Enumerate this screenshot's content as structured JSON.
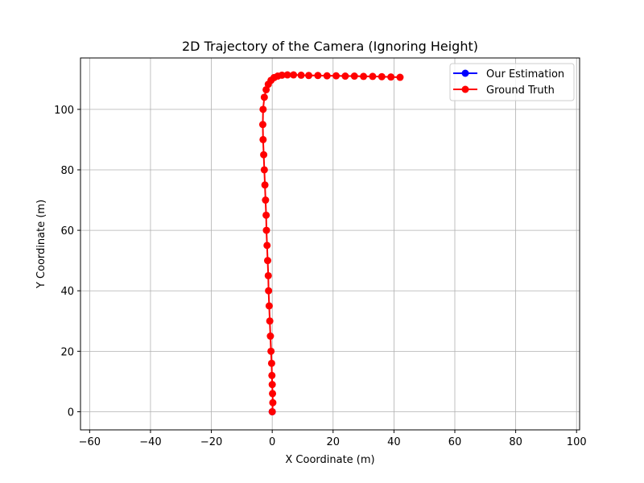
{
  "chart_data": {
    "type": "line",
    "title": "2D Trajectory of the Camera (Ignoring Height)",
    "xlabel": "X Coordinate (m)",
    "ylabel": "Y Coordinate (m)",
    "xlim": [
      -63,
      101
    ],
    "ylim": [
      -6,
      117
    ],
    "xticks": [
      -60,
      -40,
      -20,
      0,
      20,
      40,
      60,
      80,
      100
    ],
    "yticks": [
      0,
      20,
      40,
      60,
      80,
      100
    ],
    "xtick_labels": [
      "−60",
      "−40",
      "−20",
      "0",
      "20",
      "40",
      "60",
      "80",
      "100"
    ],
    "ytick_labels": [
      "0",
      "20",
      "40",
      "60",
      "80",
      "100"
    ],
    "grid": true,
    "legend_position": "top-right",
    "series": [
      {
        "name": "Our Estimation",
        "color": "#0000ff",
        "marker": "circle",
        "x": [
          0.0
        ],
        "y": [
          0.0
        ]
      },
      {
        "name": "Ground Truth",
        "color": "#ff0000",
        "marker": "circle",
        "x": [
          0.0,
          0.2,
          0.1,
          0.0,
          -0.1,
          -0.2,
          -0.4,
          -0.6,
          -0.8,
          -1.0,
          -1.2,
          -1.3,
          -1.5,
          -1.7,
          -1.9,
          -2.0,
          -2.2,
          -2.4,
          -2.6,
          -2.8,
          -3.0,
          -3.1,
          -3.0,
          -2.6,
          -2.0,
          -1.3,
          -0.4,
          0.6,
          1.8,
          3.2,
          5.0,
          7.0,
          9.5,
          12.0,
          15.0,
          18.0,
          21.0,
          24.0,
          27.0,
          30.0,
          33.0,
          36.0,
          39.0,
          42.0
        ],
        "y": [
          0.0,
          3.0,
          6.0,
          9.0,
          12.0,
          16.0,
          20.0,
          25.0,
          30.0,
          35.0,
          40.0,
          45.0,
          50.0,
          55.0,
          60.0,
          65.0,
          70.0,
          75.0,
          80.0,
          85.0,
          90.0,
          95.0,
          100.0,
          104.0,
          106.5,
          108.3,
          109.6,
          110.5,
          111.0,
          111.3,
          111.4,
          111.4,
          111.3,
          111.2,
          111.2,
          111.1,
          111.1,
          111.0,
          111.0,
          110.9,
          110.9,
          110.8,
          110.7,
          110.6
        ]
      }
    ]
  }
}
